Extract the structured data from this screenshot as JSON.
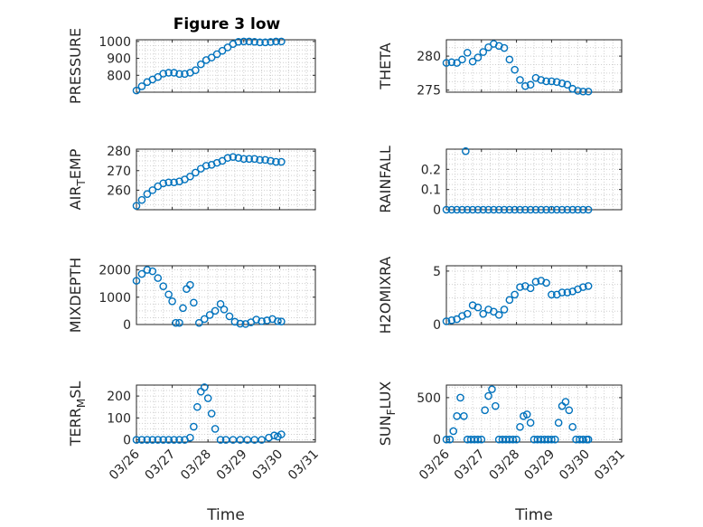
{
  "figure": {
    "title": "Figure 3 low",
    "marker_color": "#0072BD",
    "axis_color": "#262626"
  },
  "chart_data": [
    {
      "type": "scatter",
      "id": "pressure",
      "ylabel": "PRESSURE",
      "ylim": [
        700,
        1010
      ],
      "yticks": [
        800,
        900,
        1000
      ],
      "ytick_labels": [
        "800",
        "900",
        "1000"
      ],
      "xlim": [
        0,
        5
      ],
      "xticks": [
        0,
        1,
        2,
        3,
        4,
        5
      ],
      "xtick_labels": [],
      "xlabel": "",
      "x": [
        0.0,
        0.15,
        0.3,
        0.45,
        0.6,
        0.75,
        0.9,
        1.05,
        1.2,
        1.35,
        1.5,
        1.65,
        1.8,
        1.95,
        2.1,
        2.25,
        2.4,
        2.55,
        2.7,
        2.85,
        3.0,
        3.15,
        3.3,
        3.45,
        3.6,
        3.75,
        3.9,
        4.05
      ],
      "values": [
        710,
        735,
        760,
        775,
        790,
        810,
        815,
        815,
        808,
        808,
        815,
        830,
        865,
        890,
        905,
        925,
        945,
        965,
        985,
        998,
        1000,
        1000,
        998,
        995,
        995,
        997,
        1000,
        1000
      ]
    },
    {
      "type": "scatter",
      "id": "theta",
      "ylabel": "THETA",
      "ylim": [
        274.7,
        282.4
      ],
      "yticks": [
        275,
        280
      ],
      "ytick_labels": [
        "275",
        "280"
      ],
      "xlim": [
        0,
        5
      ],
      "xticks": [
        0,
        1,
        2,
        3,
        4,
        5
      ],
      "xtick_labels": [],
      "xlabel": "",
      "x": [
        0.0,
        0.15,
        0.3,
        0.45,
        0.6,
        0.75,
        0.9,
        1.05,
        1.2,
        1.35,
        1.5,
        1.65,
        1.8,
        1.95,
        2.1,
        2.25,
        2.4,
        2.55,
        2.7,
        2.85,
        3.0,
        3.15,
        3.3,
        3.45,
        3.6,
        3.75,
        3.9,
        4.05
      ],
      "values": [
        279.0,
        279.1,
        279.0,
        279.5,
        280.5,
        279.2,
        279.8,
        280.6,
        281.3,
        281.8,
        281.5,
        281.2,
        279.5,
        278.0,
        276.5,
        275.6,
        275.8,
        276.8,
        276.5,
        276.3,
        276.3,
        276.2,
        276.0,
        275.8,
        275.2,
        274.9,
        274.8,
        274.8
      ]
    },
    {
      "type": "scatter",
      "id": "air_temp",
      "ylabel": "AIR_TEMP",
      "ylim": [
        250,
        281
      ],
      "yticks": [
        260,
        270,
        280
      ],
      "ytick_labels": [
        "260",
        "270",
        "280"
      ],
      "xlim": [
        0,
        5
      ],
      "xticks": [
        0,
        1,
        2,
        3,
        4,
        5
      ],
      "xtick_labels": [],
      "xlabel": "",
      "x": [
        0.0,
        0.15,
        0.3,
        0.45,
        0.6,
        0.75,
        0.9,
        1.05,
        1.2,
        1.35,
        1.5,
        1.65,
        1.8,
        1.95,
        2.1,
        2.25,
        2.4,
        2.55,
        2.7,
        2.85,
        3.0,
        3.15,
        3.3,
        3.45,
        3.6,
        3.75,
        3.9,
        4.05
      ],
      "values": [
        252,
        255,
        258,
        260,
        262,
        263.5,
        264,
        264,
        264.5,
        265.5,
        267,
        269,
        271,
        272.5,
        273,
        274,
        275,
        276.5,
        277,
        276.5,
        276,
        276,
        276,
        275.5,
        275.5,
        275,
        274.5,
        274.5
      ]
    },
    {
      "type": "scatter",
      "id": "rainfall",
      "ylabel": "RAINFALL",
      "ylim": [
        0,
        0.3
      ],
      "yticks": [
        0,
        0.1,
        0.2
      ],
      "ytick_labels": [
        "0",
        "0.1",
        "0.2"
      ],
      "xlim": [
        0,
        5
      ],
      "xticks": [
        0,
        1,
        2,
        3,
        4,
        5
      ],
      "xtick_labels": [],
      "xlabel": "",
      "x": [
        0.0,
        0.15,
        0.3,
        0.45,
        0.6,
        0.75,
        0.9,
        1.05,
        1.2,
        1.35,
        1.5,
        1.65,
        1.8,
        1.95,
        2.1,
        2.25,
        2.4,
        2.55,
        2.7,
        2.85,
        3.0,
        3.15,
        3.3,
        3.45,
        3.6,
        3.75,
        3.9,
        4.05,
        0.55
      ],
      "values": [
        0,
        0,
        0,
        0,
        0,
        0,
        0,
        0,
        0,
        0,
        0,
        0,
        0,
        0,
        0,
        0,
        0,
        0,
        0,
        0,
        0,
        0,
        0,
        0,
        0,
        0,
        0,
        0,
        0.29
      ]
    },
    {
      "type": "scatter",
      "id": "mixdepth",
      "ylabel": "MIXDEPTH",
      "ylim": [
        0,
        2150
      ],
      "yticks": [
        0,
        1000,
        2000
      ],
      "ytick_labels": [
        "0",
        "1000",
        "2000"
      ],
      "xlim": [
        0,
        5
      ],
      "xticks": [
        0,
        1,
        2,
        3,
        4,
        5
      ],
      "xtick_labels": [],
      "xlabel": "",
      "x": [
        0.0,
        0.15,
        0.3,
        0.45,
        0.6,
        0.75,
        0.9,
        1.0,
        1.1,
        1.2,
        1.3,
        1.4,
        1.5,
        1.6,
        1.75,
        1.9,
        2.05,
        2.2,
        2.35,
        2.45,
        2.6,
        2.75,
        2.9,
        3.05,
        3.2,
        3.35,
        3.5,
        3.65,
        3.8,
        3.95,
        4.05
      ],
      "values": [
        1600,
        1850,
        2000,
        1950,
        1700,
        1400,
        1100,
        850,
        60,
        60,
        600,
        1300,
        1450,
        800,
        60,
        200,
        350,
        500,
        750,
        550,
        300,
        100,
        30,
        20,
        80,
        180,
        120,
        150,
        200,
        120,
        110
      ]
    },
    {
      "type": "scatter",
      "id": "h2omixra",
      "ylabel": "H2OMIXRA",
      "ylim": [
        0,
        5.5
      ],
      "yticks": [
        0,
        5
      ],
      "ytick_labels": [
        "0",
        "5"
      ],
      "xlim": [
        0,
        5
      ],
      "xticks": [
        0,
        1,
        2,
        3,
        4,
        5
      ],
      "xtick_labels": [],
      "xlabel": "",
      "x": [
        0.0,
        0.15,
        0.3,
        0.45,
        0.6,
        0.75,
        0.9,
        1.05,
        1.2,
        1.35,
        1.5,
        1.65,
        1.8,
        1.95,
        2.1,
        2.25,
        2.4,
        2.55,
        2.7,
        2.85,
        3.0,
        3.15,
        3.3,
        3.45,
        3.6,
        3.75,
        3.9,
        4.05
      ],
      "values": [
        0.3,
        0.4,
        0.5,
        0.8,
        1.0,
        1.8,
        1.6,
        1.0,
        1.4,
        1.2,
        0.9,
        1.4,
        2.3,
        2.8,
        3.5,
        3.6,
        3.4,
        4.0,
        4.1,
        3.9,
        2.8,
        2.8,
        3.0,
        3.0,
        3.1,
        3.3,
        3.5,
        3.6
      ]
    },
    {
      "type": "scatter",
      "id": "terr_msl",
      "ylabel": "TERR_MSL",
      "ylim": [
        -10,
        250
      ],
      "yticks": [
        0,
        100,
        200
      ],
      "ytick_labels": [
        "0",
        "100",
        "200"
      ],
      "xlim": [
        0,
        5
      ],
      "xticks": [
        0,
        1,
        2,
        3,
        4,
        5
      ],
      "xtick_labels": [
        "03/26",
        "03/27",
        "03/28",
        "03/29",
        "03/30",
        "03/31"
      ],
      "xlabel": "Time",
      "x": [
        0.0,
        0.15,
        0.3,
        0.45,
        0.6,
        0.75,
        0.9,
        1.05,
        1.2,
        1.35,
        1.5,
        1.6,
        1.7,
        1.8,
        1.9,
        2.0,
        2.1,
        2.2,
        2.35,
        2.5,
        2.7,
        2.9,
        3.1,
        3.3,
        3.5,
        3.7,
        3.85,
        3.95,
        4.05
      ],
      "values": [
        0,
        0,
        0,
        0,
        0,
        0,
        0,
        0,
        0,
        0,
        10,
        60,
        150,
        220,
        240,
        190,
        120,
        50,
        0,
        0,
        0,
        0,
        0,
        0,
        0,
        10,
        20,
        15,
        25
      ]
    },
    {
      "type": "scatter",
      "id": "sun_flux",
      "ylabel": "SUN_FLUX",
      "ylim": [
        -30,
        650
      ],
      "yticks": [
        0,
        500
      ],
      "ytick_labels": [
        "0",
        "500"
      ],
      "xlim": [
        0,
        5
      ],
      "xticks": [
        0,
        1,
        2,
        3,
        4,
        5
      ],
      "xtick_labels": [
        "03/26",
        "03/27",
        "03/28",
        "03/29",
        "03/30",
        "03/31"
      ],
      "xlabel": "Time",
      "x": [
        0.0,
        0.1,
        0.2,
        0.3,
        0.4,
        0.5,
        0.6,
        0.7,
        0.8,
        0.9,
        1.0,
        1.1,
        1.2,
        1.3,
        1.4,
        1.5,
        1.6,
        1.7,
        1.8,
        1.9,
        2.0,
        2.1,
        2.2,
        2.3,
        2.4,
        2.5,
        2.6,
        2.7,
        2.8,
        2.9,
        3.0,
        3.1,
        3.2,
        3.3,
        3.4,
        3.5,
        3.6,
        3.7,
        3.8,
        3.9,
        4.0,
        4.05
      ],
      "values": [
        0,
        0,
        100,
        280,
        500,
        280,
        0,
        0,
        0,
        0,
        0,
        350,
        520,
        600,
        400,
        0,
        0,
        0,
        0,
        0,
        0,
        150,
        280,
        300,
        200,
        0,
        0,
        0,
        0,
        0,
        0,
        0,
        200,
        400,
        450,
        350,
        150,
        0,
        0,
        0,
        0,
        0
      ]
    }
  ]
}
